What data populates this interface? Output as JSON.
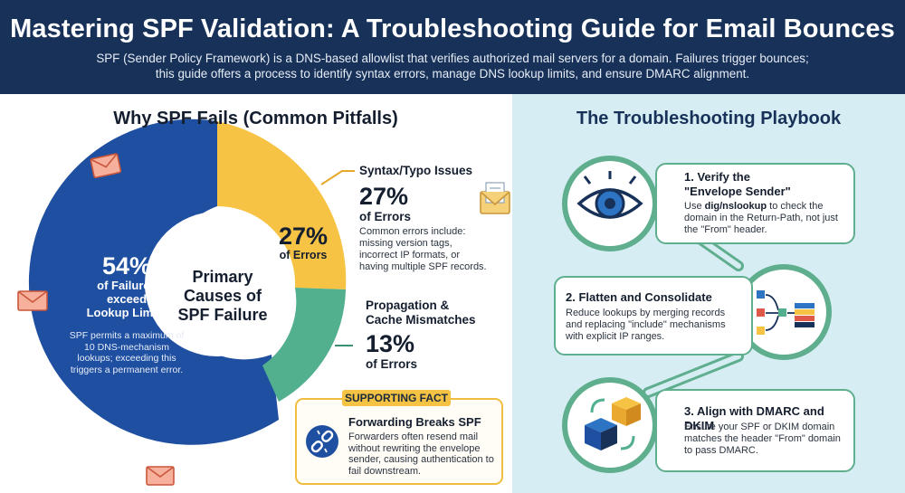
{
  "header": {
    "title": "Mastering SPF Validation: A Troubleshooting Guide for Email Bounces",
    "subtitle_line1": "SPF (Sender Policy Framework) is a DNS-based allowlist that verifies authorized mail servers for a domain. Failures trigger bounces;",
    "subtitle_line2": "this guide offers a process to identify syntax errors, manage DNS lookup limits, and ensure DMARC alignment."
  },
  "left": {
    "title": "Why SPF Fails (Common Pitfalls)",
    "center_label_line1": "Primary",
    "center_label_line2": "Causes of",
    "center_label_line3": "SPF Failure",
    "segments": [
      {
        "percent": "54%",
        "label_line1": "of Failures",
        "label_line2": "exceed",
        "label_line3": "Lookup Limits",
        "note": "SPF permits a maximum of 10 DNS-mechanism lookups; exceeding this triggers a permanent error.",
        "color": "#1f4fa0"
      },
      {
        "percent": "27%",
        "label": "of Errors",
        "color": "#f6c344"
      },
      {
        "percent": "13%",
        "color": "#52b08f"
      }
    ],
    "annotations": {
      "syntax": {
        "heading": "Syntax/Typo Issues",
        "percent": "27%",
        "sub": "of Errors",
        "body_line1": "Common errors include:",
        "body_line2": "missing version tags,",
        "body_line3": "incorrect IP formats, or",
        "body_line4": "having multiple SPF records."
      },
      "propagation": {
        "heading_line1": "Propagation &",
        "heading_line2": "Cache Mismatches",
        "percent": "13%",
        "sub": "of Errors"
      }
    },
    "fact": {
      "tag": "SUPPORTING FACT",
      "title": "Forwarding Breaks SPF",
      "body": "Forwarders often resend mail without rewriting the envelope sender, causing authentication to fail downstream."
    }
  },
  "right": {
    "title": "The Troubleshooting Playbook",
    "steps": [
      {
        "title_line1": "1. Verify the",
        "title_line2": "\"Envelope Sender\"",
        "body_prefix": "Use ",
        "body_bold": "dig/nslookup",
        "body_suffix": " to check the domain in the Return-Path, not just the \"From\" header.",
        "icon": "eye-icon"
      },
      {
        "title": "2. Flatten and Consolidate",
        "body": "Reduce lookups by merging records and replacing \"include\" mechanisms with explicit IP ranges.",
        "icon": "flatten-diagram-icon"
      },
      {
        "title": "3. Align with DMARC and DKIM",
        "body": "Ensure your SPF or DKIM domain matches the header \"From\" domain to pass DMARC.",
        "icon": "align-cubes-icon"
      }
    ]
  },
  "colors": {
    "navy": "#173159",
    "blue": "#1f4fa0",
    "yellow": "#f6c344",
    "green": "#52b08f",
    "light_blue_bg": "#d7edf4"
  }
}
